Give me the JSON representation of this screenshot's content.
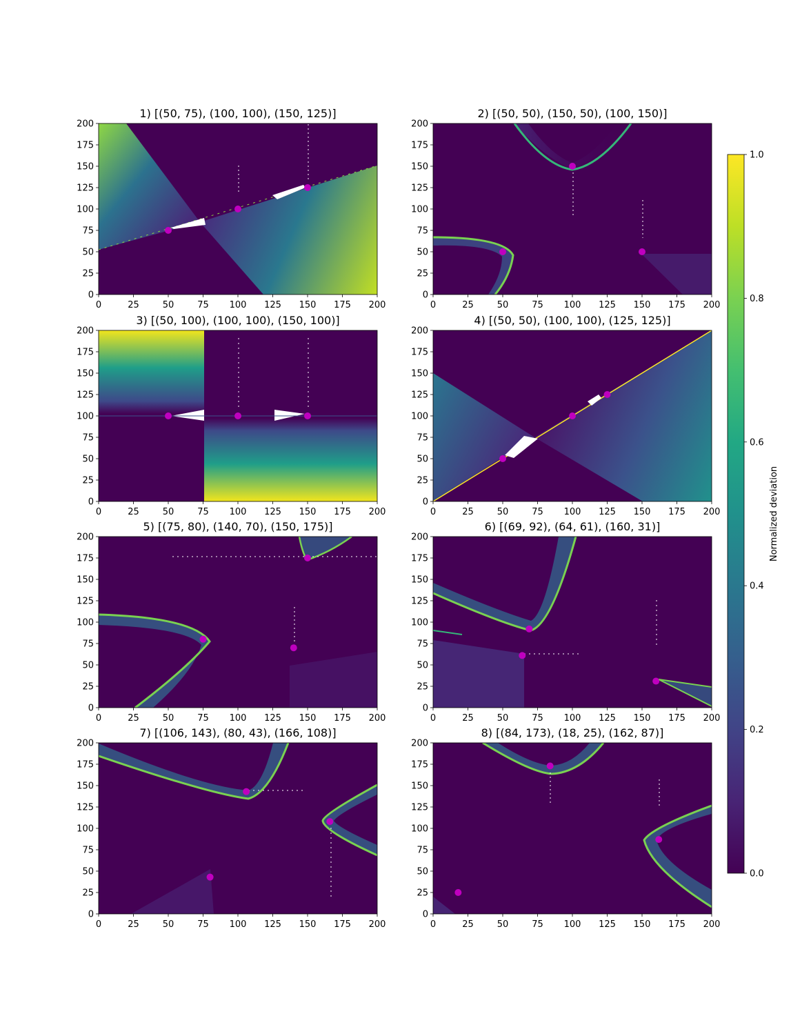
{
  "chart_data": {
    "type": "heatmap",
    "colormap": "viridis",
    "marker_color": "#bf00bf",
    "colorbar": {
      "label": "Normalized deviation",
      "range": [
        0,
        1
      ],
      "ticks": [
        "0.0",
        "0.2",
        "0.4",
        "0.6",
        "0.8",
        "1.0"
      ]
    },
    "axes": {
      "xlim": [
        0,
        200
      ],
      "ylim": [
        0,
        200
      ],
      "ticks": [
        "0",
        "25",
        "50",
        "75",
        "100",
        "125",
        "150",
        "175",
        "200"
      ]
    },
    "panels": [
      {
        "title": "1) [(50, 75), (100, 100), (150, 125)]",
        "points": [
          [
            50,
            75
          ],
          [
            100,
            100
          ],
          [
            150,
            125
          ]
        ]
      },
      {
        "title": "2) [(50, 50), (150, 50), (100, 150)]",
        "points": [
          [
            50,
            50
          ],
          [
            150,
            50
          ],
          [
            100,
            150
          ]
        ]
      },
      {
        "title": "3) [(50, 100), (100, 100), (150, 100)]",
        "points": [
          [
            50,
            100
          ],
          [
            100,
            100
          ],
          [
            150,
            100
          ]
        ]
      },
      {
        "title": "4) [(50, 50), (100, 100), (125, 125)]",
        "points": [
          [
            50,
            50
          ],
          [
            100,
            100
          ],
          [
            125,
            125
          ]
        ]
      },
      {
        "title": "5) [(75, 80), (140, 70), (150, 175)]",
        "points": [
          [
            75,
            80
          ],
          [
            140,
            70
          ],
          [
            150,
            175
          ]
        ]
      },
      {
        "title": "6) [(69, 92), (64, 61), (160, 31)]",
        "points": [
          [
            69,
            92
          ],
          [
            64,
            61
          ],
          [
            160,
            31
          ]
        ]
      },
      {
        "title": "7) [(106, 143), (80, 43), (166, 108)]",
        "points": [
          [
            106,
            143
          ],
          [
            80,
            43
          ],
          [
            166,
            108
          ]
        ]
      },
      {
        "title": "8) [(84, 173), (18, 25), (162, 87)]",
        "points": [
          [
            84,
            173
          ],
          [
            18,
            25
          ],
          [
            162,
            87
          ]
        ]
      }
    ]
  }
}
